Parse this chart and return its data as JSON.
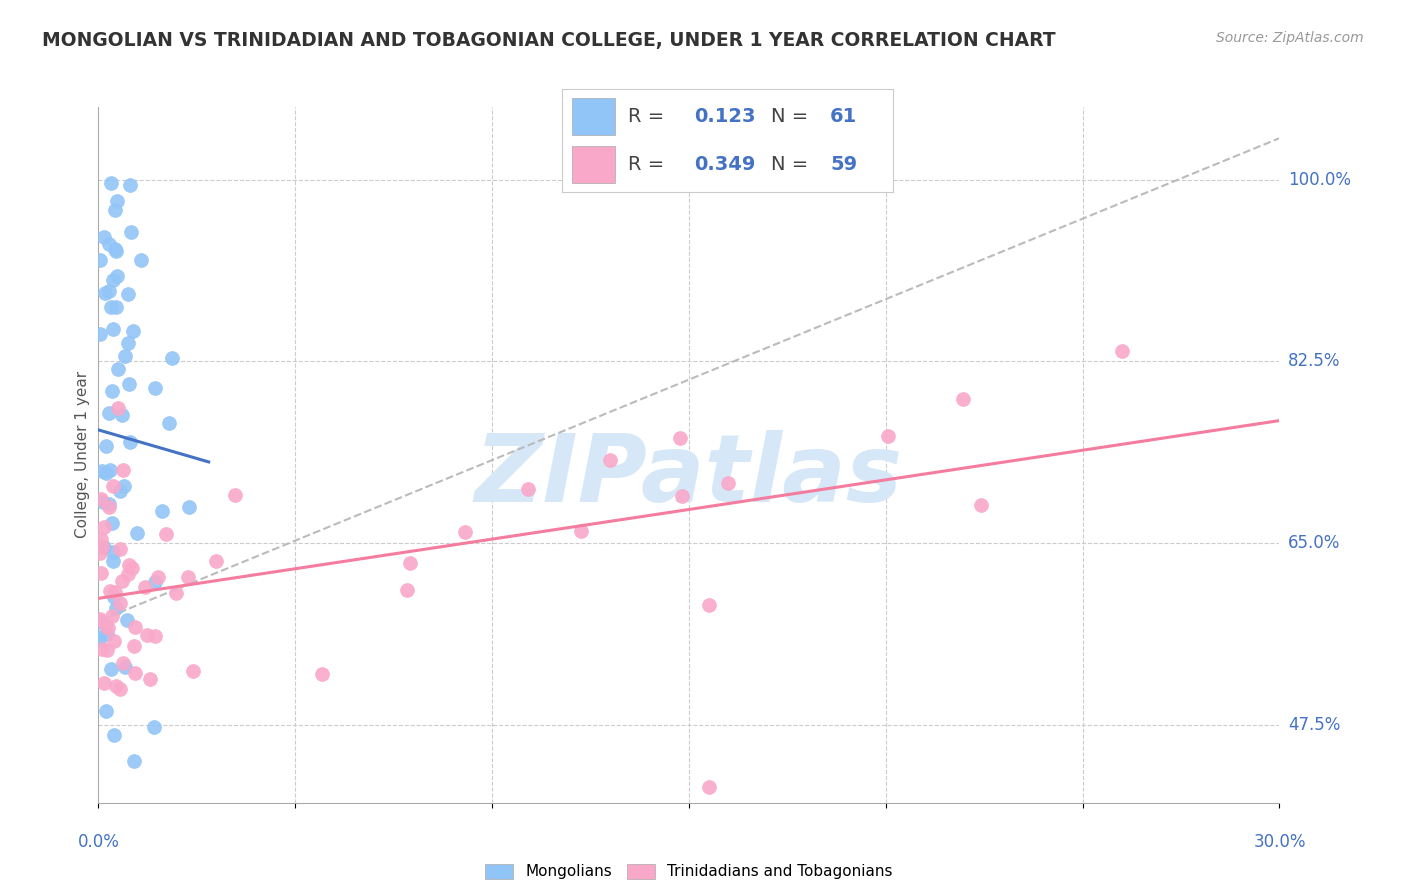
{
  "title": "MONGOLIAN VS TRINIDADIAN AND TOBAGONIAN COLLEGE, UNDER 1 YEAR CORRELATION CHART",
  "source": "Source: ZipAtlas.com",
  "ylabel": "College, Under 1 year",
  "mongolian_R": "0.123",
  "mongolian_N": "61",
  "trinidadian_R": "0.349",
  "trinidadian_N": "59",
  "mongolian_color": "#92C5F7",
  "trinidadian_color": "#F9A8C9",
  "mongolian_line_color": "#4472C4",
  "trinidadian_line_color": "#F47C9E",
  "dashed_line_color": "#BBBBBB",
  "background_color": "#FFFFFF",
  "watermark_color": "#D6E8F7",
  "xlim": [
    0.0,
    0.3
  ],
  "ylim": [
    0.4,
    1.07
  ],
  "y_tick_vals": [
    1.0,
    0.825,
    0.65,
    0.475
  ],
  "y_tick_labels": [
    "100.0%",
    "82.5%",
    "65.0%",
    "47.5%"
  ],
  "title_fontsize": 13.5,
  "source_fontsize": 10,
  "axis_label_fontsize": 11,
  "tick_fontsize": 12,
  "legend_fontsize": 14
}
